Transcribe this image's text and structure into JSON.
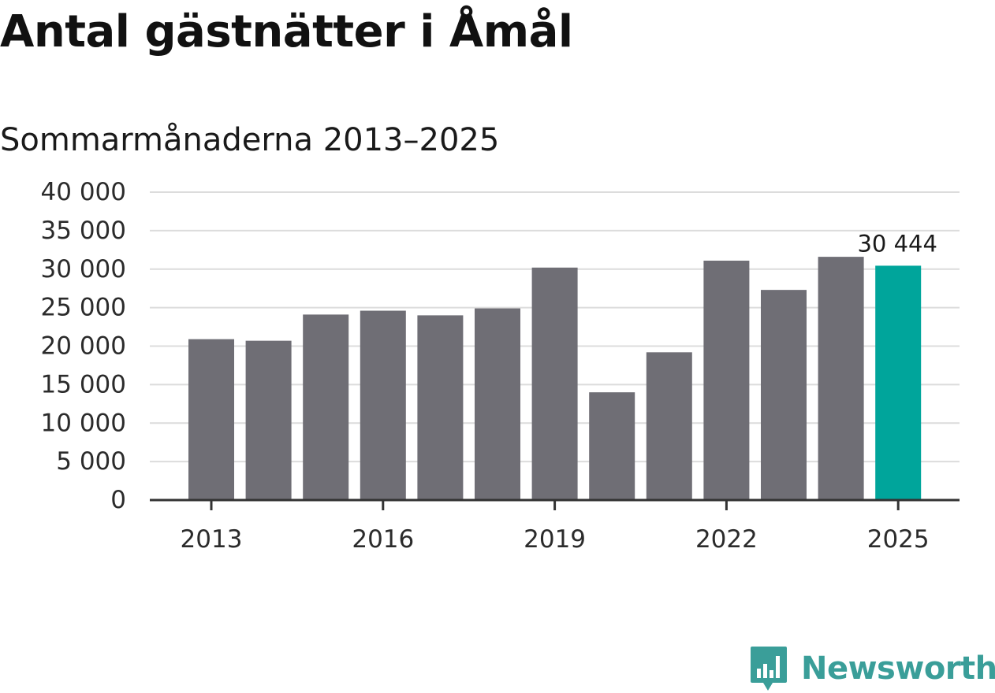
{
  "chart_data": {
    "type": "bar",
    "title": "Antal gästnätter i Åmål",
    "subtitle": "Sommarmånaderna 2013–2025",
    "categories": [
      "2013",
      "2014",
      "2015",
      "2016",
      "2017",
      "2018",
      "2019",
      "2020",
      "2021",
      "2022",
      "2023",
      "2024",
      "2025"
    ],
    "values": [
      20900,
      20700,
      24100,
      24600,
      24000,
      24900,
      30200,
      14000,
      19200,
      31100,
      27300,
      31600,
      30444
    ],
    "ylim": [
      0,
      40000
    ],
    "yticks": [
      0,
      5000,
      10000,
      15000,
      20000,
      25000,
      30000,
      35000,
      40000
    ],
    "ytick_labels": [
      "0",
      "5 000",
      "10 000",
      "15 000",
      "20 000",
      "25 000",
      "30 000",
      "35 000",
      "40 000"
    ],
    "xtick_labels": [
      "2013",
      "2016",
      "2019",
      "2022",
      "2025"
    ],
    "annotation": {
      "category": "2025",
      "label": "30 444"
    },
    "bar_color": "#6f6e75",
    "highlight_color": "#00a59b",
    "highlight_category": "2025",
    "grid": true,
    "xlabel": "",
    "ylabel": ""
  },
  "branding": {
    "logo_text": "Newsworthy",
    "logo_icon": "newsworthy-chart-icon",
    "logo_color": "#3a9e99"
  }
}
